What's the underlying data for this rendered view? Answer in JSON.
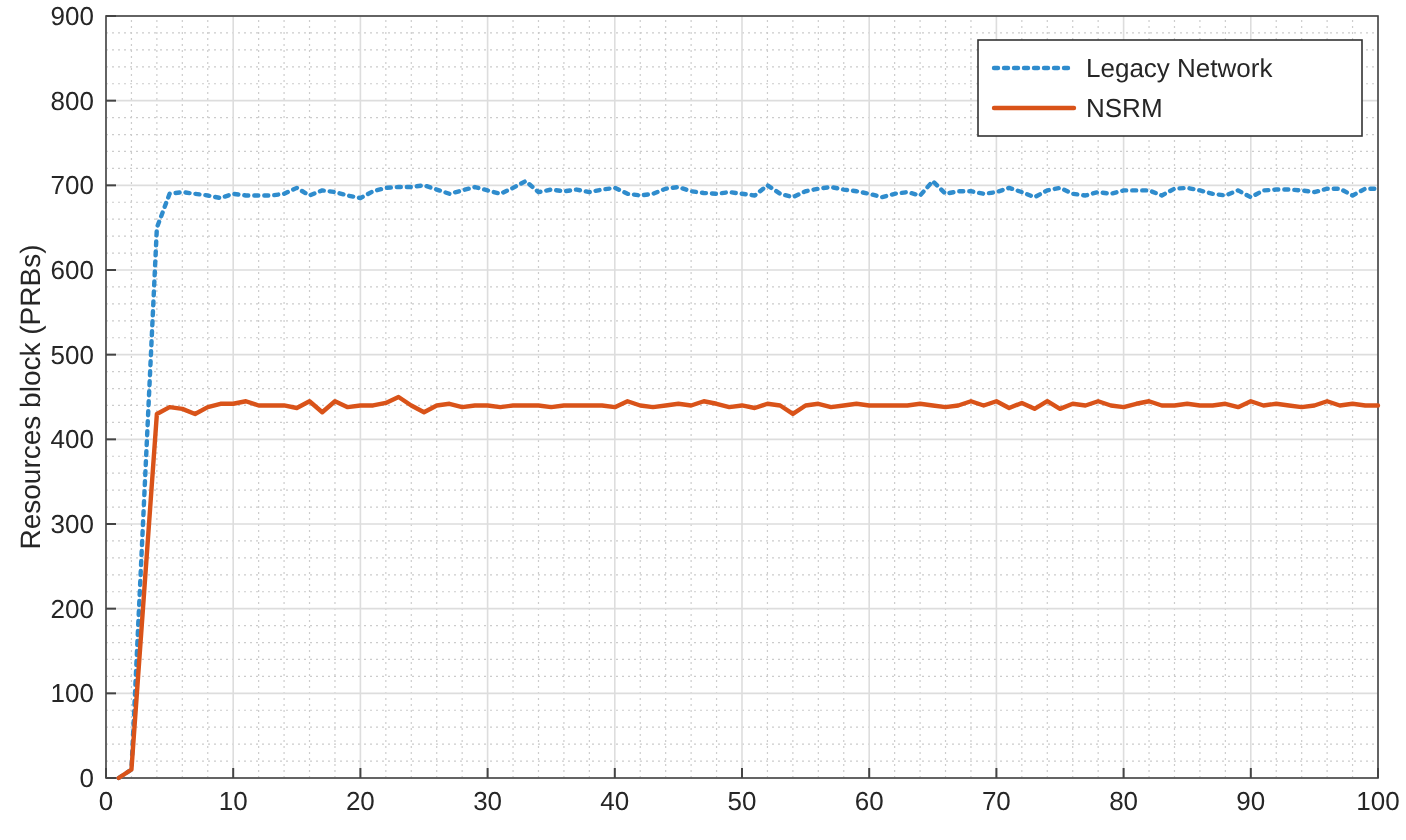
{
  "chart_data": {
    "type": "line",
    "ylabel": "Resources block (PRBs)",
    "x": [
      1,
      2,
      3,
      4,
      5,
      6,
      7,
      8,
      9,
      10,
      11,
      12,
      13,
      14,
      15,
      16,
      17,
      18,
      19,
      20,
      21,
      22,
      23,
      24,
      25,
      26,
      27,
      28,
      29,
      30,
      31,
      32,
      33,
      34,
      35,
      36,
      37,
      38,
      39,
      40,
      41,
      42,
      43,
      44,
      45,
      46,
      47,
      48,
      49,
      50,
      51,
      52,
      53,
      54,
      55,
      56,
      57,
      58,
      59,
      60,
      61,
      62,
      63,
      64,
      65,
      66,
      67,
      68,
      69,
      70,
      71,
      72,
      73,
      74,
      75,
      76,
      77,
      78,
      79,
      80,
      81,
      82,
      83,
      84,
      85,
      86,
      87,
      88,
      89,
      90,
      91,
      92,
      93,
      94,
      95,
      96,
      97,
      98,
      99,
      100
    ],
    "series": [
      {
        "name": "Legacy Network",
        "color": "#2f8ccd",
        "line_style": "dotted",
        "values": [
          0,
          10,
          330,
          650,
          690,
          692,
          690,
          688,
          685,
          690,
          688,
          688,
          688,
          690,
          697,
          688,
          694,
          692,
          688,
          685,
          693,
          697,
          698,
          698,
          700,
          695,
          690,
          694,
          698,
          694,
          690,
          697,
          705,
          692,
          695,
          693,
          695,
          692,
          695,
          697,
          690,
          688,
          690,
          696,
          698,
          693,
          691,
          690,
          692,
          690,
          688,
          700,
          690,
          686,
          693,
          696,
          698,
          695,
          693,
          690,
          686,
          690,
          692,
          688,
          705,
          690,
          693,
          693,
          690,
          692,
          697,
          692,
          686,
          694,
          697,
          690,
          688,
          692,
          690,
          694,
          694,
          694,
          688,
          696,
          697,
          694,
          690,
          688,
          694,
          686,
          694,
          695,
          695,
          694,
          692,
          696,
          696,
          688,
          696,
          696
        ]
      },
      {
        "name": "NSRM",
        "color": "#d95319",
        "line_style": "solid",
        "values": [
          0,
          10,
          220,
          430,
          438,
          436,
          430,
          438,
          442,
          442,
          445,
          440,
          440,
          440,
          437,
          445,
          432,
          445,
          438,
          440,
          440,
          443,
          450,
          440,
          432,
          440,
          442,
          438,
          440,
          440,
          438,
          440,
          440,
          440,
          438,
          440,
          440,
          440,
          440,
          438,
          445,
          440,
          438,
          440,
          442,
          440,
          445,
          442,
          438,
          440,
          437,
          442,
          440,
          430,
          440,
          442,
          438,
          440,
          442,
          440,
          440,
          440,
          440,
          442,
          440,
          438,
          440,
          445,
          440,
          445,
          437,
          443,
          436,
          445,
          436,
          442,
          440,
          445,
          440,
          438,
          442,
          445,
          440,
          440,
          442,
          440,
          440,
          442,
          438,
          445,
          440,
          442,
          440,
          438,
          440,
          445,
          440,
          442,
          440,
          440
        ]
      }
    ],
    "xlim": [
      0,
      100
    ],
    "xticks": [
      0,
      10,
      20,
      30,
      40,
      50,
      60,
      70,
      80,
      90,
      100
    ],
    "ylim": [
      0,
      900
    ],
    "yticks": [
      0,
      100,
      200,
      300,
      400,
      500,
      600,
      700,
      800,
      900
    ],
    "grid": true,
    "legend": "top right"
  }
}
